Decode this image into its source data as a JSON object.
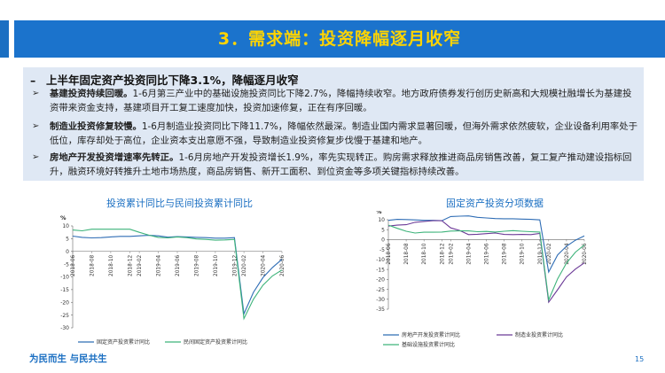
{
  "title": "3．需求端：投资降幅逐月收窄",
  "headline": "上半年固定资产投资同比下降3.1%，降幅逐月收窄",
  "bullets": [
    {
      "bold": "基建投资持续回暖。",
      "text": "1-6月第三产业中的基础设施投资同比下降2.7%，降幅持续收窄。地方政府债券发行创历史新高和大规模社融增长为基建投资带来资金支持，基建项目开工复工速度加快，投资加速修复，正在有序回暖。"
    },
    {
      "bold": "制造业投资修复较慢。",
      "text": "1-6月制造业投资同比下降11.7%，降幅依然最深。制造业国内需求显著回暖，但海外需求依然疲软，企业设备利用率处于低位，库存却处于高位，企业资本支出意愿不强，导致制造业投资修复步伐慢于基建和地产。"
    },
    {
      "bold": "房地产开发投资增速率先转正。",
      "text": "1-6月房地产开发投资增长1.9%，率先实现转正。购房需求释放推进商品房销售改善，复工复产推动建设指标回升，融资环境好转推升土地市场热度，商品房销售、新开工面积、到位资金等多项关键指标持续改善。"
    }
  ],
  "footer": "为民而生 与民共生",
  "page_number": "15",
  "chart_data": [
    {
      "type": "line",
      "title": "投资累计同比与民间投资累计同比",
      "ylabel": "%",
      "ylim": [
        -30,
        10
      ],
      "yticks": [
        10,
        5,
        0,
        -5,
        -10,
        -15,
        -20,
        -25,
        -30
      ],
      "tick_labels": [
        "2018-06",
        "2018-08",
        "2018-10",
        "2018-12",
        "2019-02",
        "2019-04",
        "2019-06",
        "2019-08",
        "2019-10",
        "2019-12",
        "2020-02",
        "2020-04",
        "2020-06"
      ],
      "x": [
        "2018-06",
        "2018-07",
        "2018-08",
        "2018-09",
        "2018-10",
        "2018-11",
        "2018-12",
        "2019-02",
        "2019-03",
        "2019-04",
        "2019-05",
        "2019-06",
        "2019-07",
        "2019-08",
        "2019-09",
        "2019-10",
        "2019-11",
        "2019-12",
        "2020-02",
        "2020-03",
        "2020-04",
        "2020-05",
        "2020-06"
      ],
      "series": [
        {
          "name": "固定资产投资累计同比",
          "color": "#2f6db5",
          "values": [
            6.0,
            5.5,
            5.3,
            5.4,
            5.7,
            5.9,
            5.9,
            6.1,
            6.3,
            6.1,
            5.6,
            5.8,
            5.7,
            5.5,
            5.4,
            5.2,
            5.2,
            5.4,
            -24.5,
            -16.1,
            -10.3,
            -6.3,
            -3.1
          ]
        },
        {
          "name": "民间固定资产投资累计同比",
          "color": "#3db37a",
          "values": [
            8.4,
            8.1,
            8.7,
            8.7,
            8.7,
            8.7,
            8.7,
            7.5,
            6.4,
            5.5,
            5.3,
            5.7,
            5.4,
            4.9,
            4.7,
            4.4,
            4.5,
            4.7,
            -26.4,
            -18.8,
            -13.3,
            -9.6,
            -7.3
          ]
        }
      ]
    },
    {
      "type": "line",
      "title": "固定资产投资分项数据",
      "ylabel": "%",
      "ylim": [
        -35,
        10
      ],
      "yticks": [
        10,
        5,
        0,
        -5,
        -10,
        -15,
        -20,
        -25,
        -30,
        -35
      ],
      "tick_labels": [
        "2018-06",
        "2018-08",
        "2018-10",
        "2018-12",
        "2019-02",
        "2019-04",
        "2019-06",
        "2019-08",
        "2019-10",
        "2019-12",
        "2020-02",
        "2020-04",
        "2020-06"
      ],
      "x": [
        "2018-06",
        "2018-07",
        "2018-08",
        "2018-09",
        "2018-10",
        "2018-11",
        "2018-12",
        "2019-02",
        "2019-03",
        "2019-04",
        "2019-05",
        "2019-06",
        "2019-07",
        "2019-08",
        "2019-09",
        "2019-10",
        "2019-11",
        "2019-12",
        "2020-02",
        "2020-03",
        "2020-04",
        "2020-05",
        "2020-06"
      ],
      "series": [
        {
          "name": "房地产开发投资累计同比",
          "color": "#2f6db5",
          "values": [
            9.7,
            10.2,
            10.1,
            9.9,
            9.7,
            9.7,
            9.5,
            11.6,
            11.8,
            11.9,
            11.2,
            10.9,
            10.6,
            10.5,
            10.5,
            10.3,
            10.2,
            9.9,
            -16.3,
            -7.7,
            -3.3,
            -0.3,
            1.9
          ]
        },
        {
          "name": "制造业投资累计同比",
          "color": "#6b3a97",
          "values": [
            6.8,
            7.3,
            7.5,
            8.7,
            9.1,
            9.5,
            9.5,
            5.9,
            4.6,
            2.5,
            2.7,
            3.0,
            3.3,
            2.6,
            2.5,
            2.6,
            2.5,
            3.1,
            -31.5,
            -25.2,
            -18.8,
            -14.8,
            -11.7
          ]
        },
        {
          "name": "基础设施投资累计同比",
          "color": "#3db37a",
          "values": [
            7.3,
            5.7,
            4.2,
            3.3,
            3.7,
            3.7,
            3.8,
            4.3,
            4.4,
            4.4,
            4.0,
            4.1,
            3.8,
            4.2,
            4.5,
            4.2,
            4.0,
            3.8,
            -30.3,
            -19.7,
            -11.8,
            -6.3,
            -2.7
          ]
        }
      ]
    }
  ]
}
